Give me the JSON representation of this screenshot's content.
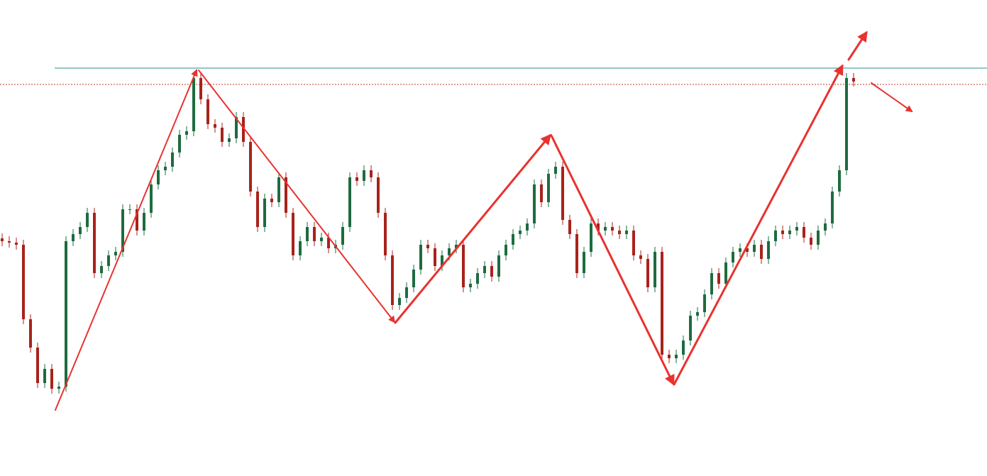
{
  "chart_data": {
    "type": "candlestick",
    "x": [
      0,
      1,
      2,
      3,
      4,
      5,
      6,
      7,
      8,
      9,
      10,
      11,
      12,
      13,
      14,
      15,
      16,
      17,
      18,
      19,
      20,
      21,
      22,
      23,
      24,
      25,
      26,
      27,
      28,
      29,
      30,
      31,
      32,
      33,
      34,
      35,
      36,
      37,
      38,
      39,
      40,
      41,
      42,
      43,
      44,
      45,
      46,
      47,
      48,
      49,
      50,
      51,
      52,
      53,
      54,
      55,
      56,
      57,
      58,
      59,
      60,
      61,
      62,
      63,
      64,
      65,
      66,
      67,
      68,
      69,
      70,
      71,
      72,
      73,
      74,
      75,
      76,
      77,
      78,
      79,
      80,
      81,
      82,
      83,
      84,
      85,
      86,
      87,
      88,
      89,
      90,
      91,
      92,
      93,
      94,
      95,
      96,
      97,
      98,
      99,
      100,
      101,
      102,
      103,
      104,
      105,
      106,
      107,
      108,
      109,
      110,
      111,
      112,
      113,
      114,
      115,
      116,
      117,
      118,
      119,
      120
    ],
    "open": [
      335,
      331,
      329,
      326,
      221,
      181,
      131,
      151,
      123,
      126,
      331,
      341,
      351,
      371,
      286,
      296,
      311,
      316,
      376,
      376,
      346,
      371,
      411,
      431,
      436,
      456,
      481,
      486,
      561,
      531,
      496,
      491,
      471,
      476,
      506,
      471,
      401,
      351,
      391,
      386,
      421,
      371,
      311,
      331,
      351,
      331,
      336,
      321,
      326,
      351,
      421,
      416,
      431,
      421,
      371,
      311,
      241,
      251,
      266,
      291,
      326,
      321,
      296,
      311,
      321,
      326,
      266,
      271,
      286,
      296,
      281,
      311,
      326,
      341,
      346,
      356,
      411,
      386,
      426,
      436,
      361,
      341,
      286,
      316,
      356,
      346,
      351,
      346,
      341,
      346,
      311,
      306,
      266,
      316,
      171,
      166,
      171,
      191,
      226,
      231,
      256,
      286,
      271,
      301,
      316,
      321,
      316,
      326,
      306,
      331,
      346,
      341,
      346,
      351,
      336,
      326,
      346,
      356,
      401,
      431,
      561
    ],
    "high": [
      342,
      338,
      336,
      333,
      228,
      188,
      158,
      158,
      133,
      338,
      348,
      358,
      378,
      378,
      303,
      318,
      323,
      383,
      383,
      383,
      378,
      418,
      438,
      443,
      463,
      488,
      493,
      568,
      568,
      538,
      503,
      498,
      483,
      513,
      513,
      478,
      408,
      398,
      398,
      428,
      428,
      378,
      338,
      358,
      358,
      343,
      343,
      333,
      358,
      428,
      428,
      438,
      438,
      428,
      378,
      318,
      258,
      273,
      298,
      333,
      333,
      328,
      318,
      328,
      333,
      333,
      278,
      293,
      303,
      303,
      318,
      333,
      348,
      353,
      363,
      418,
      418,
      433,
      443,
      443,
      368,
      348,
      323,
      363,
      363,
      358,
      358,
      353,
      353,
      353,
      318,
      313,
      323,
      323,
      178,
      178,
      198,
      233,
      238,
      263,
      293,
      293,
      308,
      323,
      328,
      328,
      333,
      333,
      338,
      353,
      353,
      353,
      358,
      358,
      343,
      353,
      363,
      408,
      438,
      568,
      568
    ],
    "low": [
      324,
      322,
      319,
      214,
      174,
      124,
      124,
      116,
      116,
      119,
      324,
      334,
      344,
      279,
      279,
      289,
      304,
      309,
      369,
      339,
      339,
      364,
      404,
      424,
      429,
      449,
      474,
      479,
      524,
      489,
      484,
      464,
      464,
      469,
      464,
      394,
      344,
      344,
      379,
      379,
      364,
      304,
      304,
      324,
      324,
      324,
      314,
      314,
      319,
      344,
      409,
      409,
      414,
      364,
      304,
      234,
      234,
      244,
      259,
      284,
      314,
      289,
      289,
      304,
      314,
      259,
      259,
      264,
      279,
      274,
      274,
      304,
      319,
      334,
      339,
      349,
      379,
      379,
      419,
      354,
      334,
      279,
      279,
      309,
      339,
      339,
      339,
      334,
      334,
      304,
      299,
      259,
      259,
      164,
      159,
      159,
      164,
      184,
      219,
      224,
      249,
      264,
      264,
      294,
      309,
      309,
      309,
      299,
      299,
      324,
      334,
      334,
      339,
      329,
      319,
      319,
      339,
      349,
      394,
      424,
      549
    ],
    "close": [
      331,
      329,
      326,
      221,
      181,
      131,
      151,
      123,
      126,
      331,
      341,
      351,
      371,
      286,
      296,
      311,
      316,
      376,
      376,
      346,
      371,
      411,
      431,
      436,
      456,
      481,
      486,
      561,
      531,
      496,
      491,
      471,
      476,
      506,
      471,
      401,
      351,
      391,
      386,
      421,
      371,
      311,
      331,
      351,
      331,
      336,
      321,
      326,
      351,
      421,
      416,
      431,
      421,
      371,
      311,
      241,
      251,
      266,
      291,
      326,
      321,
      296,
      311,
      321,
      326,
      266,
      271,
      286,
      296,
      281,
      311,
      326,
      341,
      346,
      356,
      411,
      386,
      426,
      436,
      361,
      341,
      286,
      316,
      356,
      346,
      351,
      346,
      341,
      346,
      311,
      306,
      266,
      316,
      171,
      166,
      171,
      191,
      226,
      231,
      256,
      286,
      271,
      301,
      316,
      321,
      316,
      326,
      306,
      331,
      346,
      341,
      346,
      351,
      336,
      326,
      346,
      356,
      401,
      431,
      561,
      556
    ],
    "up_color": "#1e6b40",
    "down_color": "#a8231c",
    "xlim": [
      0,
      120
    ],
    "ylim": [
      0,
      671
    ],
    "hlines": [
      {
        "value": 575,
        "color": "#2a8f8f",
        "style": "solid"
      },
      {
        "value": 552,
        "color": "#c0392b",
        "style": "dotted"
      }
    ]
  }
}
